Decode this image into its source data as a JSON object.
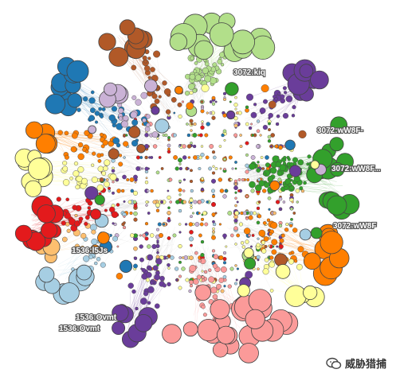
{
  "figure": {
    "type": "network-cluster-graph",
    "background": "#ffffff",
    "node_stroke": "#444444",
    "edge_color": "#999999",
    "clusters": [
      {
        "id": "green-light",
        "color": "#b2df8a",
        "label": "3072:kiq"
      },
      {
        "id": "purple-dark",
        "color": "#6a3d9a"
      },
      {
        "id": "green",
        "color": "#33a02c",
        "label": "3072:wW8F"
      },
      {
        "id": "orange",
        "color": "#ff7f00",
        "label": "3072:wW8F"
      },
      {
        "id": "yellow",
        "color": "#ffff99"
      },
      {
        "id": "pink",
        "color": "#fb9a99"
      },
      {
        "id": "purple",
        "color": "#6a3d9a"
      },
      {
        "id": "blue-light",
        "color": "#a6cee3",
        "label": "1536:Ovmt"
      },
      {
        "id": "orange-light",
        "color": "#fdbf6f",
        "label": "1536:l5Js"
      },
      {
        "id": "red",
        "color": "#e31a1c"
      },
      {
        "id": "yellow-2",
        "color": "#ffff99"
      },
      {
        "id": "orange-2",
        "color": "#ff7f00"
      },
      {
        "id": "blue",
        "color": "#1f78b4"
      },
      {
        "id": "brown",
        "color": "#b15928"
      },
      {
        "id": "lavender",
        "color": "#cab2d6"
      }
    ],
    "labels": [
      "3072:kiq",
      "3072:wW8F-",
      "3072:wW8F...",
      "3072:wW8F",
      "1536:l5Js",
      "1536:Ovmt",
      "1536:Ovmt"
    ]
  },
  "watermark": {
    "text": "威胁猎捕",
    "icon": "wechat-icon"
  }
}
